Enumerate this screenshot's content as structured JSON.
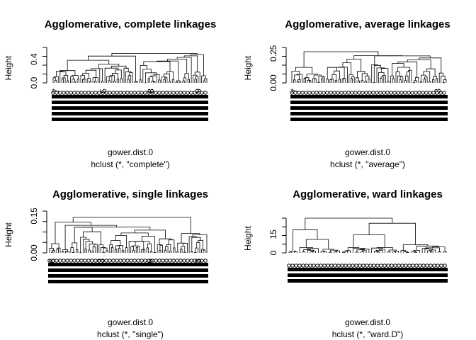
{
  "chart_data": [
    {
      "type": "dendrogram",
      "title": "Agglomerative, complete linkages",
      "ylabel": "Height",
      "xlabel": "gower.dist.0",
      "sub": "hclust (*, \"complete\")",
      "yticks": [
        "0.0",
        "0.4"
      ],
      "ytick_values": [
        0.0,
        0.4
      ],
      "ylim": [
        0,
        0.6
      ],
      "visible_leaf_labels": [
        "7",
        "5",
        "8",
        "9"
      ]
    },
    {
      "type": "dendrogram",
      "title": "Agglomerative, average linkages",
      "ylabel": "Height",
      "xlabel": "gower.dist.0",
      "sub": "hclust (*, \"average\")",
      "yticks": [
        "0.00",
        "0.25"
      ],
      "ytick_values": [
        0.0,
        0.25
      ],
      "ylim": [
        0,
        0.3
      ],
      "visible_leaf_labels": [
        "7",
        "3"
      ]
    },
    {
      "type": "dendrogram",
      "title": "Agglomerative, single linkages",
      "ylabel": "Height",
      "xlabel": "gower.dist.0",
      "sub": "hclust (*, \"single\")",
      "yticks": [
        "0.00",
        "0.15"
      ],
      "ytick_values": [
        0.0,
        0.15
      ],
      "ylim": [
        0,
        0.17
      ],
      "visible_leaf_labels": [
        "6",
        "3",
        "6",
        "3"
      ]
    },
    {
      "type": "dendrogram",
      "title": "Agglomerative, ward linkages",
      "ylabel": "Height",
      "xlabel": "gower.dist.0",
      "sub": "hclust (*, \"ward.D\")",
      "yticks": [
        "0",
        "15"
      ],
      "ytick_values": [
        0,
        15
      ],
      "ylim": [
        0,
        28
      ],
      "visible_leaf_labels": []
    }
  ]
}
